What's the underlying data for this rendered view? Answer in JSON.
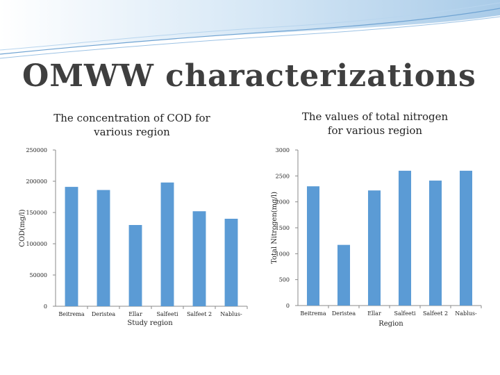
{
  "slide": {
    "title": "OMWW characterizations"
  },
  "theme": {
    "bar_color": "#5b9bd5",
    "title_color": "#3f3f3f",
    "banner_color": "#c9e0f3"
  },
  "chart_data": [
    {
      "type": "bar",
      "title": "The concentration of COD for\nvarious region",
      "xlabel": "Study region",
      "ylabel": "COD(mg/l)",
      "categories": [
        "Beitrema",
        "Deristea",
        "Ellar",
        "Salfeeti",
        "Salfeet 2",
        "Nablus-"
      ],
      "values": [
        191000,
        186000,
        130000,
        198000,
        152000,
        140000
      ],
      "ylim": [
        0,
        250000
      ],
      "yticks": [
        0,
        50000,
        100000,
        150000,
        200000,
        250000
      ],
      "ytick_labels": [
        "0",
        "50000",
        "100000",
        "150000",
        "200000",
        "250000"
      ],
      "grid": false,
      "legend": "none"
    },
    {
      "type": "bar",
      "title": "The values of total nitrogen\nfor various region",
      "xlabel": "Region",
      "ylabel": "Total Nitrogen(mg/l)",
      "categories": [
        "Beitrema",
        "Deristea",
        "Ellar",
        "Salfeeti",
        "Salfeet 2",
        "Nablus-"
      ],
      "values": [
        2300,
        1170,
        2220,
        2600,
        2410,
        2600
      ],
      "ylim": [
        0,
        3000
      ],
      "yticks": [
        0,
        500,
        1000,
        1500,
        2000,
        2500,
        3000
      ],
      "ytick_labels": [
        "0",
        "500",
        "1000",
        "1500",
        "2000",
        "2500",
        "3000"
      ],
      "grid": false,
      "legend": "none"
    }
  ]
}
